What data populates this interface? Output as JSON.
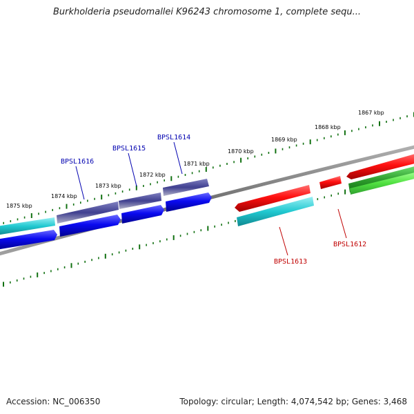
{
  "title": "Burkholderia pseudomallei K96243 chromosome 1, complete sequ...",
  "footer": {
    "accession": "Accession: NC_006350",
    "summary": "Topology: circular; Length: 4,074,542 bp; Genes: 3,468"
  },
  "kbp_labels": [
    {
      "text": "1875 kbp"
    },
    {
      "text": "1874 kbp"
    },
    {
      "text": "1873 kbp"
    },
    {
      "text": "1872 kbp"
    },
    {
      "text": "1871 kbp"
    },
    {
      "text": "1870 kbp"
    },
    {
      "text": "1869 kbp"
    },
    {
      "text": "1868 kbp"
    },
    {
      "text": "1867 kbp"
    }
  ],
  "gene_labels": [
    {
      "text": "BPSL1616"
    },
    {
      "text": "BPSL1615"
    },
    {
      "text": "BPSL1614"
    },
    {
      "text": "BPSL1613"
    },
    {
      "text": "BPSL1612"
    }
  ],
  "colors": {
    "forward_cds": "#e00000",
    "reverse_cds": "#0000e0",
    "cyan_feature": "#20c0c8",
    "navy_feature": "#404090",
    "green_feature": "#30a030",
    "backbone": "#808080",
    "ticks": "#107010",
    "blue_label": "#0000b0",
    "red_label": "#c00000"
  }
}
